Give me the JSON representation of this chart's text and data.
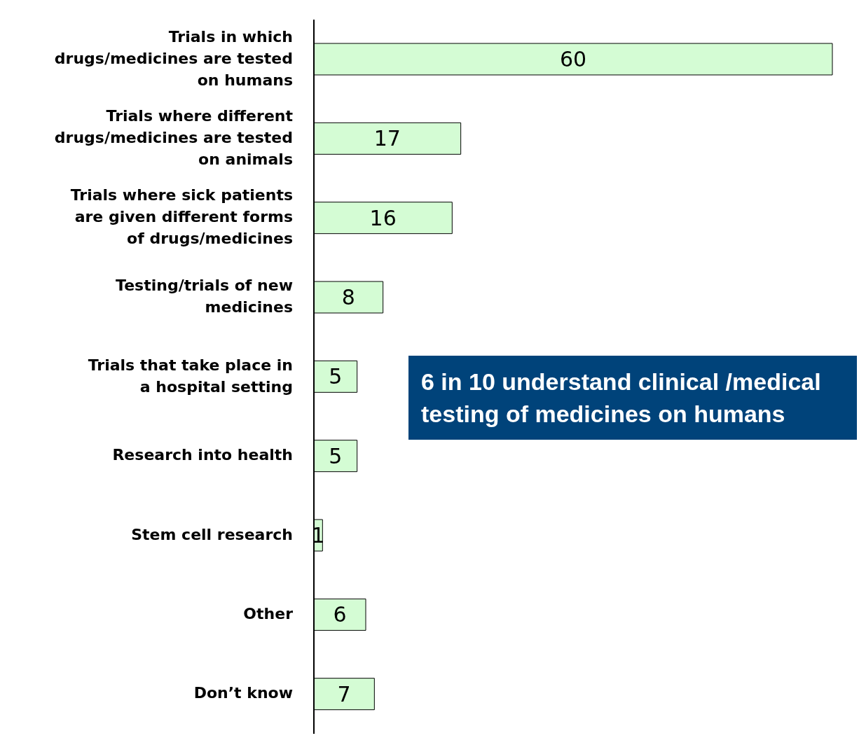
{
  "chart_data": {
    "type": "bar",
    "orientation": "horizontal",
    "categories": [
      "Trials in which drugs/medicines are tested on humans",
      "Trials where different drugs/medicines are tested on animals",
      "Trials where sick patients are given different forms of drugs/medicines",
      "Testing/trials of new medicines",
      "Trials that take place in a hospital setting",
      "Research into health",
      "Stem cell research",
      "Other",
      "Don’t know"
    ],
    "values": [
      60,
      17,
      16,
      8,
      5,
      5,
      1,
      6,
      7
    ],
    "color": "#d4fcd4",
    "data_labels": true,
    "tick_labels": "y",
    "annotations": [
      "6 in 10 understand clinical /medical testing of medicines on humans"
    ]
  }
}
